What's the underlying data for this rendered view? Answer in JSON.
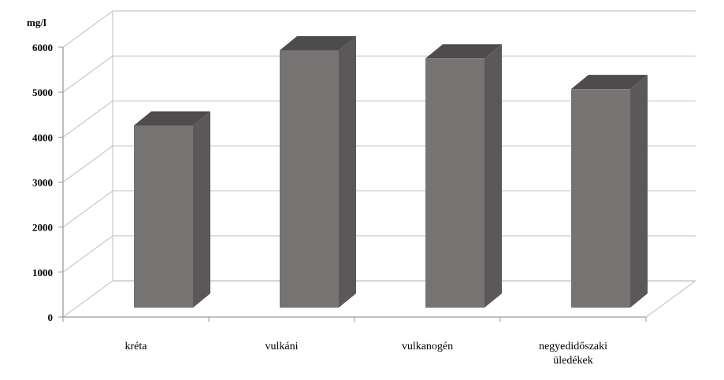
{
  "chart_data": {
    "type": "bar",
    "three_d": true,
    "title": "",
    "xlabel": "",
    "ylabel": "mg/l",
    "ylim": [
      0,
      6000
    ],
    "y_ticks": [
      "0",
      "1000",
      "2000",
      "3000",
      "4000",
      "5000",
      "6000"
    ],
    "categories": [
      [
        "kréta"
      ],
      [
        "vulkáni"
      ],
      [
        "vulkanogén"
      ],
      [
        "negyedidőszaki",
        "üledékek"
      ]
    ],
    "values": [
      4050,
      5720,
      5540,
      4860
    ],
    "grid": true,
    "legend": "none",
    "colors": {
      "bar_front": "#767373",
      "bar_side": "#5a5858",
      "bar_top": "#4d4b4b",
      "grid": "#c8c8c8",
      "axis": "#9a9a9a"
    }
  }
}
